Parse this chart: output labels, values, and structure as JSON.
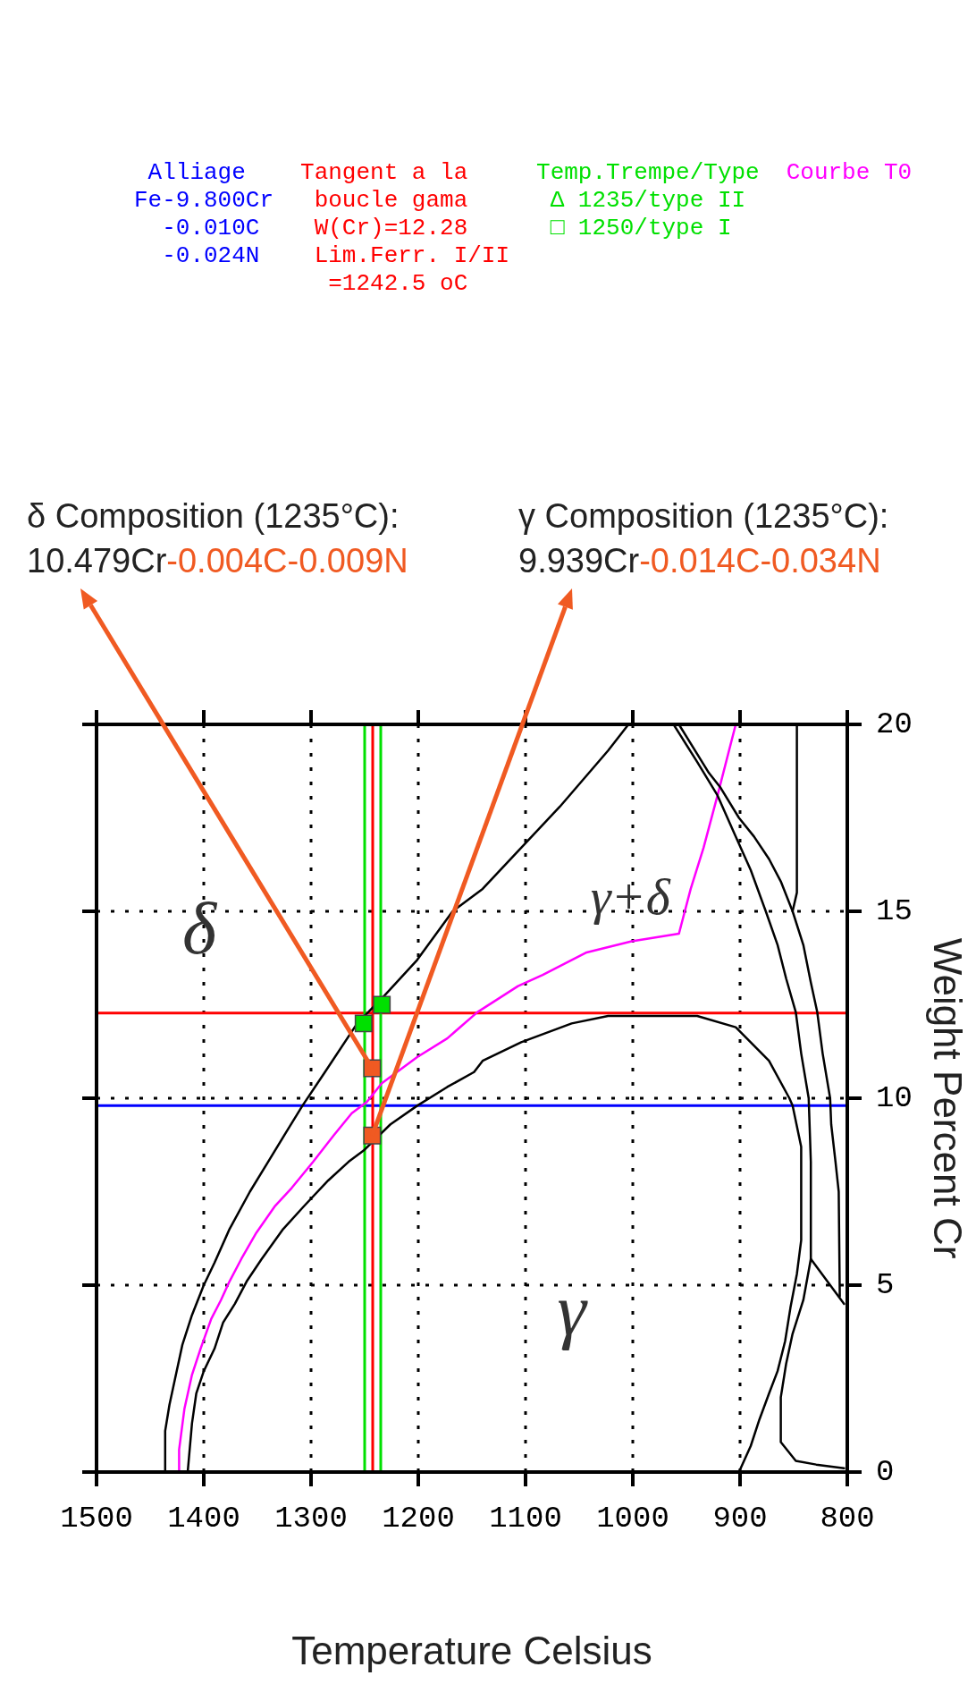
{
  "chart_data": {
    "type": "line",
    "xlabel": "Temperature Celsius",
    "ylabel": "Weight Percent Cr",
    "xlim": [
      1500,
      800
    ],
    "xticks": [
      1500,
      1400,
      1300,
      1200,
      1100,
      1000,
      900,
      800
    ],
    "ylim": [
      0,
      20
    ],
    "yticks": [
      0,
      5,
      10,
      15,
      20
    ],
    "grid": true,
    "series": [
      {
        "color": "#000000",
        "x": [
          1436,
          1436,
          1432,
          1426,
          1420,
          1411,
          1400,
          1390,
          1376,
          1357,
          1340,
          1323,
          1308,
          1287,
          1257,
          1233,
          1201,
          1168,
          1140,
          1104,
          1068,
          1023,
          1004
        ],
        "values": [
          0,
          1.1,
          1.8,
          2.6,
          3.4,
          4.2,
          5.0,
          5.6,
          6.5,
          7.5,
          8.3,
          9.1,
          9.8,
          10.7,
          12.0,
          12.7,
          13.7,
          15.0,
          15.6,
          16.7,
          17.8,
          19.3,
          20.0
        ]
      },
      {
        "color": "#000000",
        "x": [
          1415,
          1411,
          1407,
          1400,
          1390,
          1382,
          1371,
          1360,
          1346,
          1326,
          1307,
          1284,
          1265,
          1251,
          1226,
          1201,
          1173,
          1148,
          1140,
          1104,
          1057,
          1023,
          1007,
          940,
          904,
          873,
          854,
          851,
          843,
          843,
          847,
          853,
          858,
          865,
          873,
          882,
          890,
          901
        ],
        "values": [
          0,
          1.3,
          2.1,
          2.7,
          3.3,
          4.0,
          4.5,
          5.1,
          5.7,
          6.5,
          7.1,
          7.8,
          8.3,
          8.6,
          9.3,
          9.8,
          10.3,
          10.7,
          11.0,
          11.5,
          12.0,
          12.2,
          12.2,
          12.2,
          11.9,
          11.0,
          10.0,
          9.8,
          8.7,
          6.2,
          5.3,
          4.4,
          3.5,
          2.7,
          2.1,
          1.4,
          0.7,
          0
        ]
      },
      {
        "color": "#000000",
        "x": [
          962,
          940,
          921,
          904,
          890,
          876,
          865,
          857,
          848,
          843,
          836,
          834,
          834,
          841,
          851,
          857,
          862,
          862,
          848,
          829,
          803
        ],
        "values": [
          20,
          19.0,
          18.1,
          17.0,
          16.1,
          15.0,
          14.1,
          13.2,
          12.3,
          11.2,
          10.0,
          8.3,
          5.7,
          4.6,
          3.7,
          2.9,
          2.0,
          0.8,
          0.3,
          0.2,
          0.1
        ]
      },
      {
        "color": "#000000",
        "x": [
          957,
          929,
          918,
          901,
          887,
          873,
          862,
          851,
          841,
          834,
          828,
          823,
          816,
          815,
          811,
          808,
          807
        ],
        "values": [
          20.0,
          18.7,
          18.3,
          17.5,
          17.0,
          16.4,
          15.8,
          15.0,
          14.1,
          13.1,
          12.3,
          11.2,
          10.0,
          9.3,
          8.3,
          7.5,
          4.7
        ]
      },
      {
        "color": "#000000",
        "x": [
          847,
          847,
          851
        ],
        "values": [
          20,
          15.5,
          15.0
        ]
      },
      {
        "color": "#000000",
        "x": [
          834,
          803
        ],
        "values": [
          5.7,
          4.5
        ]
      },
      {
        "name": "Courbe T0",
        "color": "#ff00ff",
        "x": [
          1423,
          1423,
          1418,
          1411,
          1403,
          1393,
          1384,
          1376,
          1365,
          1351,
          1334,
          1318,
          1298,
          1279,
          1262,
          1248,
          1234,
          1201,
          1173,
          1145,
          1107,
          1084,
          1043,
          1001,
          957,
          946,
          934,
          921,
          904
        ],
        "values": [
          0,
          0.6,
          1.7,
          2.6,
          3.3,
          4.1,
          4.6,
          5.1,
          5.7,
          6.4,
          7.1,
          7.6,
          8.3,
          9.0,
          9.6,
          9.9,
          10.4,
          11.1,
          11.6,
          12.3,
          13.0,
          13.3,
          13.9,
          14.2,
          14.4,
          15.6,
          16.7,
          18.1,
          20.0
        ]
      },
      {
        "type": "scatter",
        "marker": "square",
        "color": "#00e000",
        "x": [
          1251,
          1234
        ],
        "values": [
          12.0,
          12.5
        ]
      },
      {
        "type": "scatter",
        "marker": "square",
        "color": "#f05a22",
        "x": [
          1243,
          1243
        ],
        "values": [
          10.8,
          9.0
        ]
      }
    ],
    "ref_lines": [
      {
        "axis": "y",
        "value": 9.8,
        "color": "#0000ff",
        "label": " Alliage\nFe-9.800Cr\n  -0.010C\n  -0.024N"
      },
      {
        "axis": "y",
        "value": 12.28,
        "color": "#ff0000",
        "label": "Tangent a la\n boucle gama\n W(Cr)=12.28\n Lim.Ferr. I/II\n  =1242.5 oC"
      },
      {
        "axis": "x",
        "value": 1242.5,
        "color": "#ff0000"
      },
      {
        "axis": "x",
        "value": 1250,
        "color": "#00e000"
      },
      {
        "axis": "x",
        "value": 1235,
        "color": "#00e000",
        "label": "Temp.Trempe/Type\n Δ 1235/type II\n □ 1250/type I"
      }
    ],
    "annotations": [
      {
        "text": "δ Composition (1235°C):\n10.479Cr-0.004C-0.009N",
        "x": 1243,
        "y": 10.8
      },
      {
        "text": "γ Composition (1235°C):\n9.939Cr-0.014C-0.034N",
        "x": 1243,
        "y": 9.0
      },
      "δ",
      "γ+δ",
      "γ"
    ]
  }
}
